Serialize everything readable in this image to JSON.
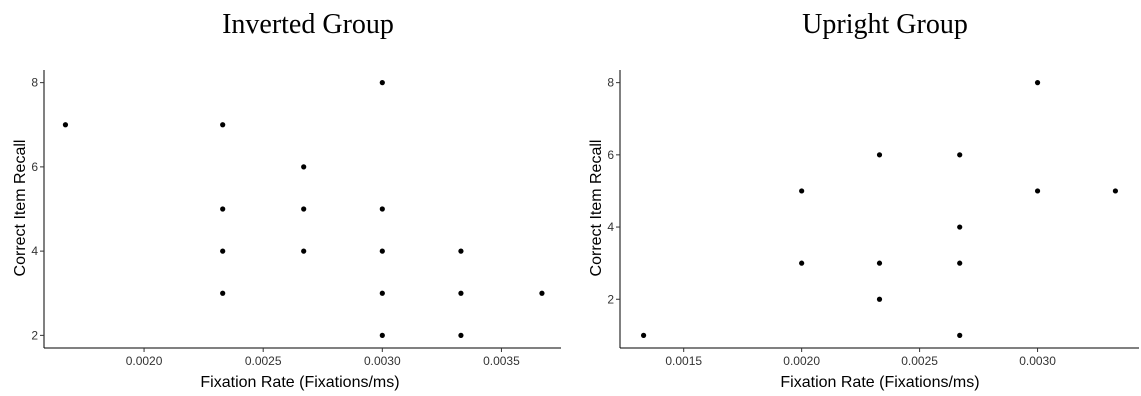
{
  "chart_data": [
    {
      "type": "scatter",
      "title": "Inverted Group",
      "xlabel": "Fixation Rate (Fixations/ms)",
      "ylabel": "Correct Item Recall",
      "xlim": [
        0.00158,
        0.00375
      ],
      "ylim": [
        1.7,
        8.3
      ],
      "xticks": [
        0.002,
        0.0025,
        0.003,
        0.0035
      ],
      "xtick_labels": [
        "0.0020",
        "0.0025",
        "0.0030",
        "0.0035"
      ],
      "yticks": [
        2,
        4,
        6,
        8
      ],
      "ytick_labels": [
        "2",
        "4",
        "6",
        "8"
      ],
      "grid": false,
      "points": [
        {
          "x": 0.00167,
          "y": 7
        },
        {
          "x": 0.00233,
          "y": 7
        },
        {
          "x": 0.00233,
          "y": 5
        },
        {
          "x": 0.00233,
          "y": 4
        },
        {
          "x": 0.00233,
          "y": 3
        },
        {
          "x": 0.00267,
          "y": 6
        },
        {
          "x": 0.00267,
          "y": 5
        },
        {
          "x": 0.00267,
          "y": 4
        },
        {
          "x": 0.003,
          "y": 8
        },
        {
          "x": 0.003,
          "y": 5
        },
        {
          "x": 0.003,
          "y": 4
        },
        {
          "x": 0.003,
          "y": 3
        },
        {
          "x": 0.003,
          "y": 2
        },
        {
          "x": 0.00333,
          "y": 4
        },
        {
          "x": 0.00333,
          "y": 3
        },
        {
          "x": 0.00333,
          "y": 2
        },
        {
          "x": 0.00367,
          "y": 3
        }
      ]
    },
    {
      "type": "scatter",
      "title": "Upright Group",
      "xlabel": "Fixation Rate (Fixations/ms)",
      "ylabel": "Correct Item Recall",
      "xlim": [
        0.00123,
        0.00343
      ],
      "ylim": [
        0.65,
        8.35
      ],
      "xticks": [
        0.0015,
        0.002,
        0.0025,
        0.003
      ],
      "xtick_labels": [
        "0.0015",
        "0.0020",
        "0.0025",
        "0.0030"
      ],
      "yticks": [
        2,
        4,
        6,
        8
      ],
      "ytick_labels": [
        "2",
        "4",
        "6",
        "8"
      ],
      "grid": false,
      "points": [
        {
          "x": 0.00133,
          "y": 1
        },
        {
          "x": 0.002,
          "y": 5
        },
        {
          "x": 0.002,
          "y": 3
        },
        {
          "x": 0.00233,
          "y": 6
        },
        {
          "x": 0.00233,
          "y": 3
        },
        {
          "x": 0.00233,
          "y": 2
        },
        {
          "x": 0.00267,
          "y": 6
        },
        {
          "x": 0.00267,
          "y": 4
        },
        {
          "x": 0.00267,
          "y": 3
        },
        {
          "x": 0.00267,
          "y": 1
        },
        {
          "x": 0.003,
          "y": 8
        },
        {
          "x": 0.003,
          "y": 5
        },
        {
          "x": 0.00333,
          "y": 5
        }
      ]
    }
  ]
}
